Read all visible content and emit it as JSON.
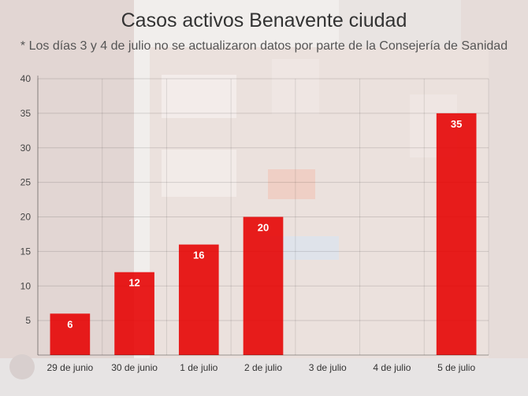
{
  "chart_data": {
    "type": "bar",
    "title": "Casos activos Benavente ciudad",
    "subtitle": "* Los días 3 y 4 de julio no se actualizaron datos por parte de la Consejería de Sanidad",
    "categories": [
      "29 de junio",
      "30  de junio",
      "1 de julio",
      "2 de julio",
      "3 de julio",
      "4 de julio",
      "5 de julio"
    ],
    "values": [
      6,
      12,
      16,
      20,
      0,
      0,
      35
    ],
    "data_labels": [
      "6",
      "12",
      "16",
      "20",
      "",
      "",
      "35"
    ],
    "ylim": [
      0,
      40
    ],
    "yticks": [
      5,
      10,
      15,
      20,
      25,
      30,
      35,
      40
    ],
    "xlabel": "",
    "ylabel": "",
    "grid": true,
    "bar_color": "#e60000",
    "legend": "none"
  }
}
